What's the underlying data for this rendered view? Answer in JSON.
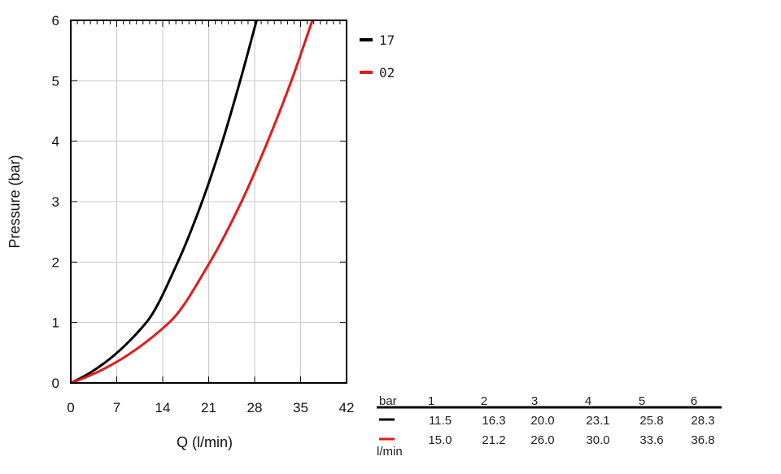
{
  "chart_data": {
    "type": "line",
    "xlabel": "Q (l/min)",
    "ylabel": "Pressure (bar)",
    "xlim": [
      0,
      42
    ],
    "ylim": [
      0,
      6
    ],
    "x_ticks": [
      "0",
      "7",
      "14",
      "21",
      "28",
      "35",
      "42"
    ],
    "y_ticks": [
      "0",
      "1",
      "2",
      "3",
      "4",
      "5",
      "6"
    ],
    "grid": true,
    "legend_position": "right, outside top",
    "series": [
      {
        "name": "17",
        "color": "#000000",
        "points": [
          [
            0,
            0
          ],
          [
            11.5,
            1
          ],
          [
            16.3,
            2
          ],
          [
            20.0,
            3
          ],
          [
            23.1,
            4
          ],
          [
            25.8,
            5
          ],
          [
            28.3,
            6
          ]
        ]
      },
      {
        "name": "02",
        "color": "#e31a1c",
        "points": [
          [
            0,
            0
          ],
          [
            15.0,
            1
          ],
          [
            21.2,
            2
          ],
          [
            26.0,
            3
          ],
          [
            30.0,
            4
          ],
          [
            33.6,
            5
          ],
          [
            36.8,
            6
          ]
        ]
      }
    ],
    "table": {
      "pressure_header": "bar",
      "flow_unit": "l/min",
      "pressures": [
        "1",
        "2",
        "3",
        "4",
        "5",
        "6"
      ],
      "rows": [
        {
          "color": "#000000",
          "values": [
            "11.5",
            "16.3",
            "20.0",
            "23.1",
            "25.8",
            "28.3"
          ]
        },
        {
          "color": "#e31a1c",
          "values": [
            "15.0",
            "21.2",
            "26.0",
            "30.0",
            "33.6",
            "36.8"
          ]
        }
      ]
    }
  }
}
